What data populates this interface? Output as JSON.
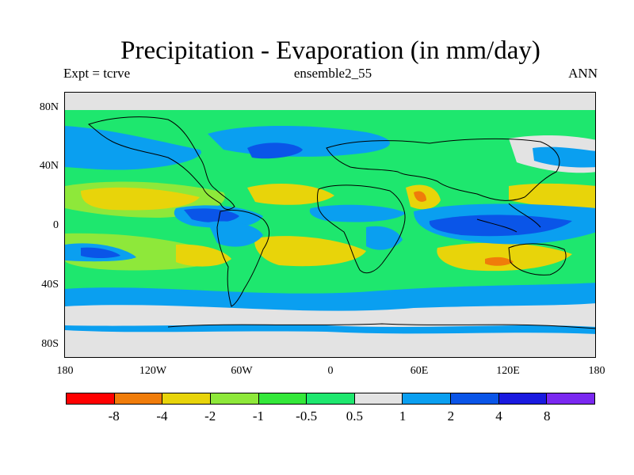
{
  "title": "Precipitation - Evaporation (in mm/day)",
  "subtitle": {
    "left": "Expt = tcrve",
    "center": "ensemble2_55",
    "right": "ANN"
  },
  "map": {
    "variable": "precipitation minus evaporation",
    "units": "mm/day",
    "projection": "cylindrical equidistant",
    "lon_range": [
      -180,
      180
    ],
    "lat_range": [
      -90,
      90
    ],
    "y_ticks": [
      "80N",
      "40N",
      "0",
      "40S",
      "80S"
    ],
    "x_ticks": [
      "180",
      "120W",
      "60W",
      "0",
      "60E",
      "120E",
      "180"
    ]
  },
  "colorbar": {
    "colors": [
      "#ff0000",
      "#f07c0a",
      "#e8d40a",
      "#8ee83a",
      "#34e83a",
      "#1ee76e",
      "#e3e3e3",
      "#0a9ff0",
      "#0a55e8",
      "#1a1ae0",
      "#7a28f0"
    ],
    "labels": [
      "-8",
      "-4",
      "-2",
      "-1",
      "-0.5",
      "0.5",
      "1",
      "2",
      "4",
      "8"
    ]
  },
  "colors": {
    "ocean_background": "#1ee76e",
    "coastline": "#000000"
  }
}
